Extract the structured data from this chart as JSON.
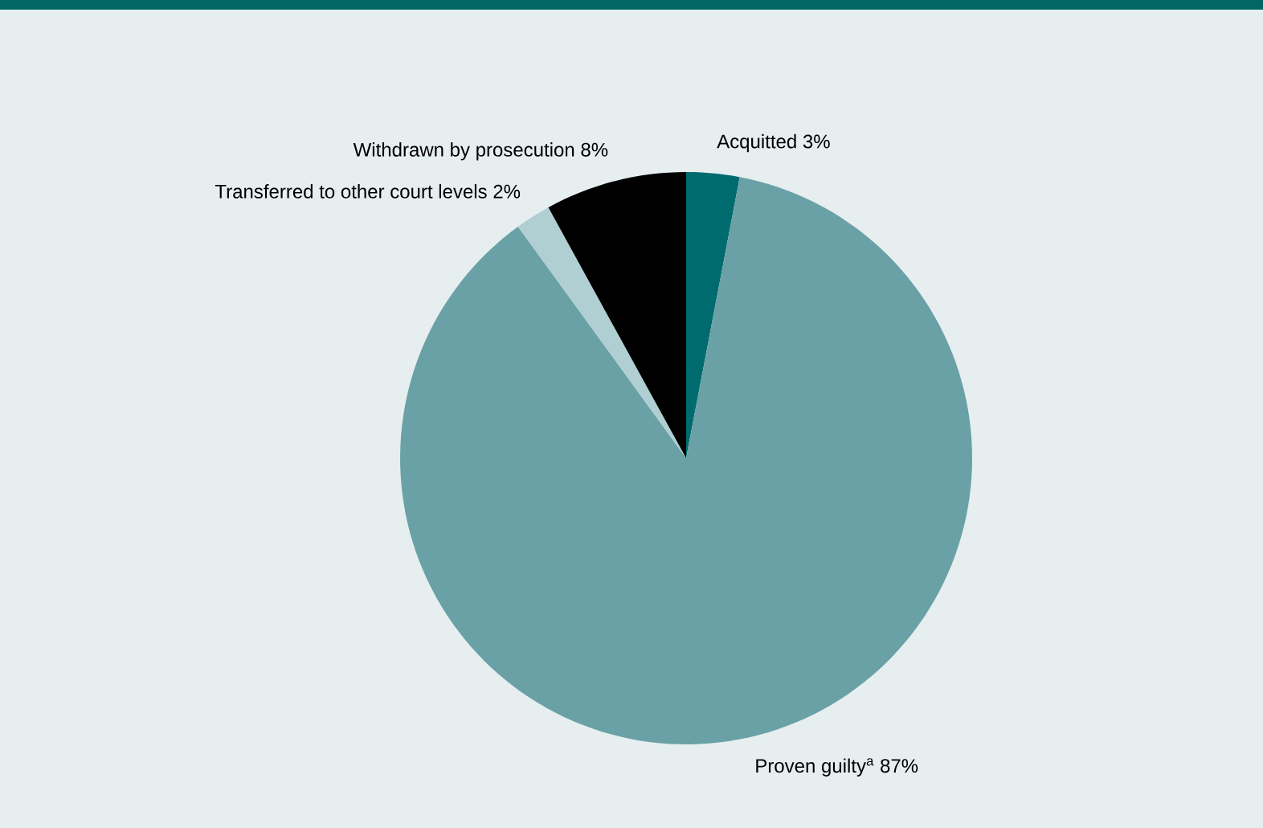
{
  "chart_data": {
    "type": "pie",
    "categories": [
      "Acquitted",
      "Proven guilty$^{a}$",
      "Transferred to other court levels",
      "Withdrawn by prosecution"
    ],
    "values": [
      3,
      87,
      2,
      8
    ],
    "value_labels": [
      "3%",
      "87%",
      "2%",
      "8%"
    ],
    "colors": [
      "#006b6e",
      "#6aa1a6",
      "#b0cfd2",
      "#000000"
    ]
  }
}
